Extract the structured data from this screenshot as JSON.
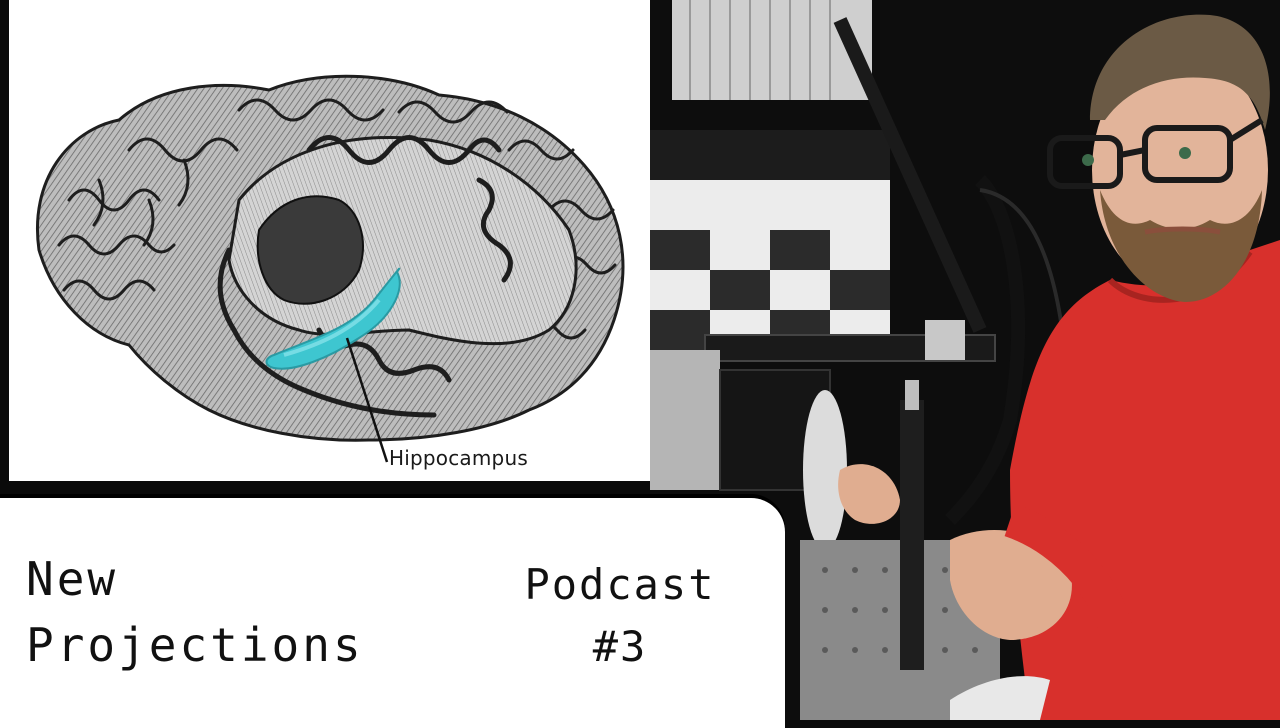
{
  "brain_figure": {
    "label": "Hippocampus",
    "highlight_color": "#3ec6d0"
  },
  "title_card": {
    "line1": "New",
    "line2": "Projections",
    "episode_line1": "Podcast",
    "episode_line2": "#3"
  },
  "photo": {
    "shirt_color": "#d8302c"
  }
}
